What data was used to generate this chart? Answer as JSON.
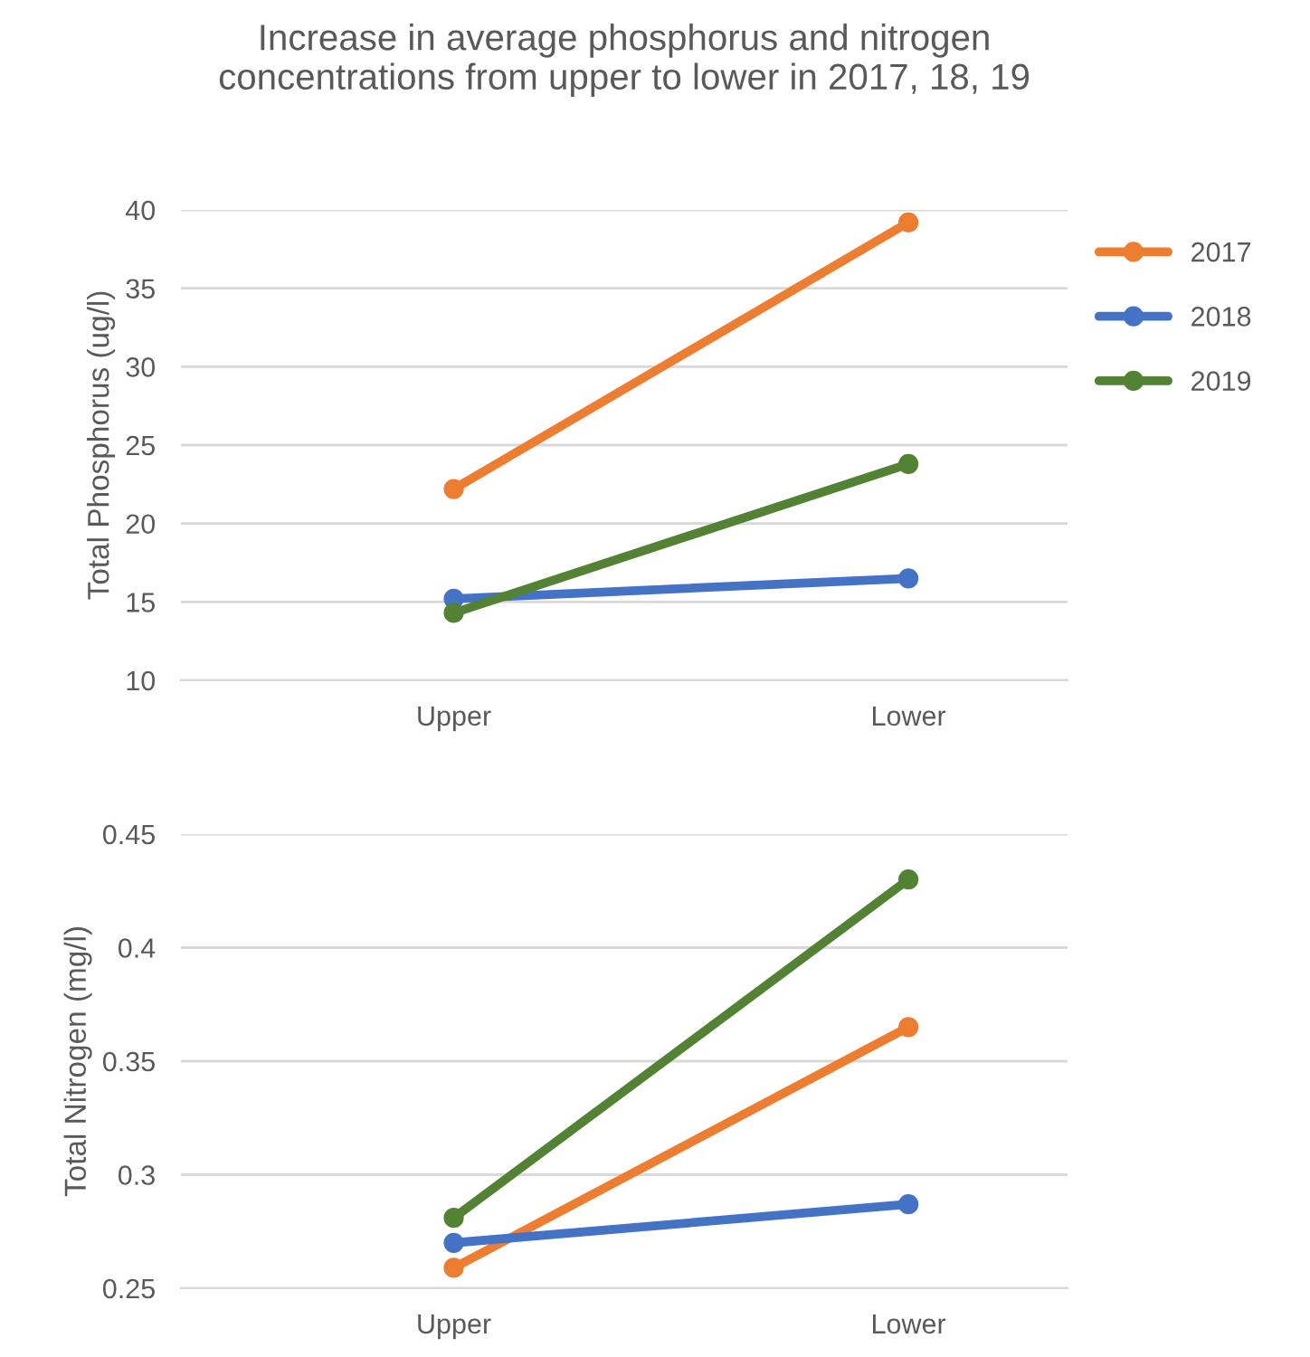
{
  "chart_data": [
    {
      "type": "line",
      "title": "Increase in average phosphorus and nitrogen\nconcentrations from upper to lower in 2017, 18, 19",
      "ylabel": "Total Phosphorus (ug/l)",
      "categories": [
        "Upper",
        "Lower"
      ],
      "series": [
        {
          "name": "2017",
          "color": "#ed7d31",
          "values": [
            22.2,
            39.2
          ]
        },
        {
          "name": "2018",
          "color": "#4472c4",
          "values": [
            15.2,
            16.5
          ]
        },
        {
          "name": "2019",
          "color": "#548235",
          "values": [
            14.3,
            23.8
          ]
        }
      ],
      "ylim": [
        10,
        40
      ],
      "yticks": [
        10,
        15,
        20,
        25,
        30,
        35,
        40
      ],
      "grid": "y",
      "legend": "top right",
      "marker": "circle",
      "line_style": "solid"
    },
    {
      "type": "line",
      "ylabel": "Total Nitrogen (mg/l)",
      "categories": [
        "Upper",
        "Lower"
      ],
      "series": [
        {
          "color": "#ed7d31",
          "values": [
            0.259,
            0.365
          ]
        },
        {
          "color": "#4472c4",
          "values": [
            0.27,
            0.287
          ]
        },
        {
          "color": "#548235",
          "values": [
            0.281,
            0.43
          ]
        }
      ],
      "ylim": [
        0.25,
        0.45
      ],
      "yticks": [
        0.25,
        0.3,
        0.35,
        0.4,
        0.45
      ],
      "grid": "y",
      "marker": "circle",
      "line_style": "solid"
    }
  ]
}
